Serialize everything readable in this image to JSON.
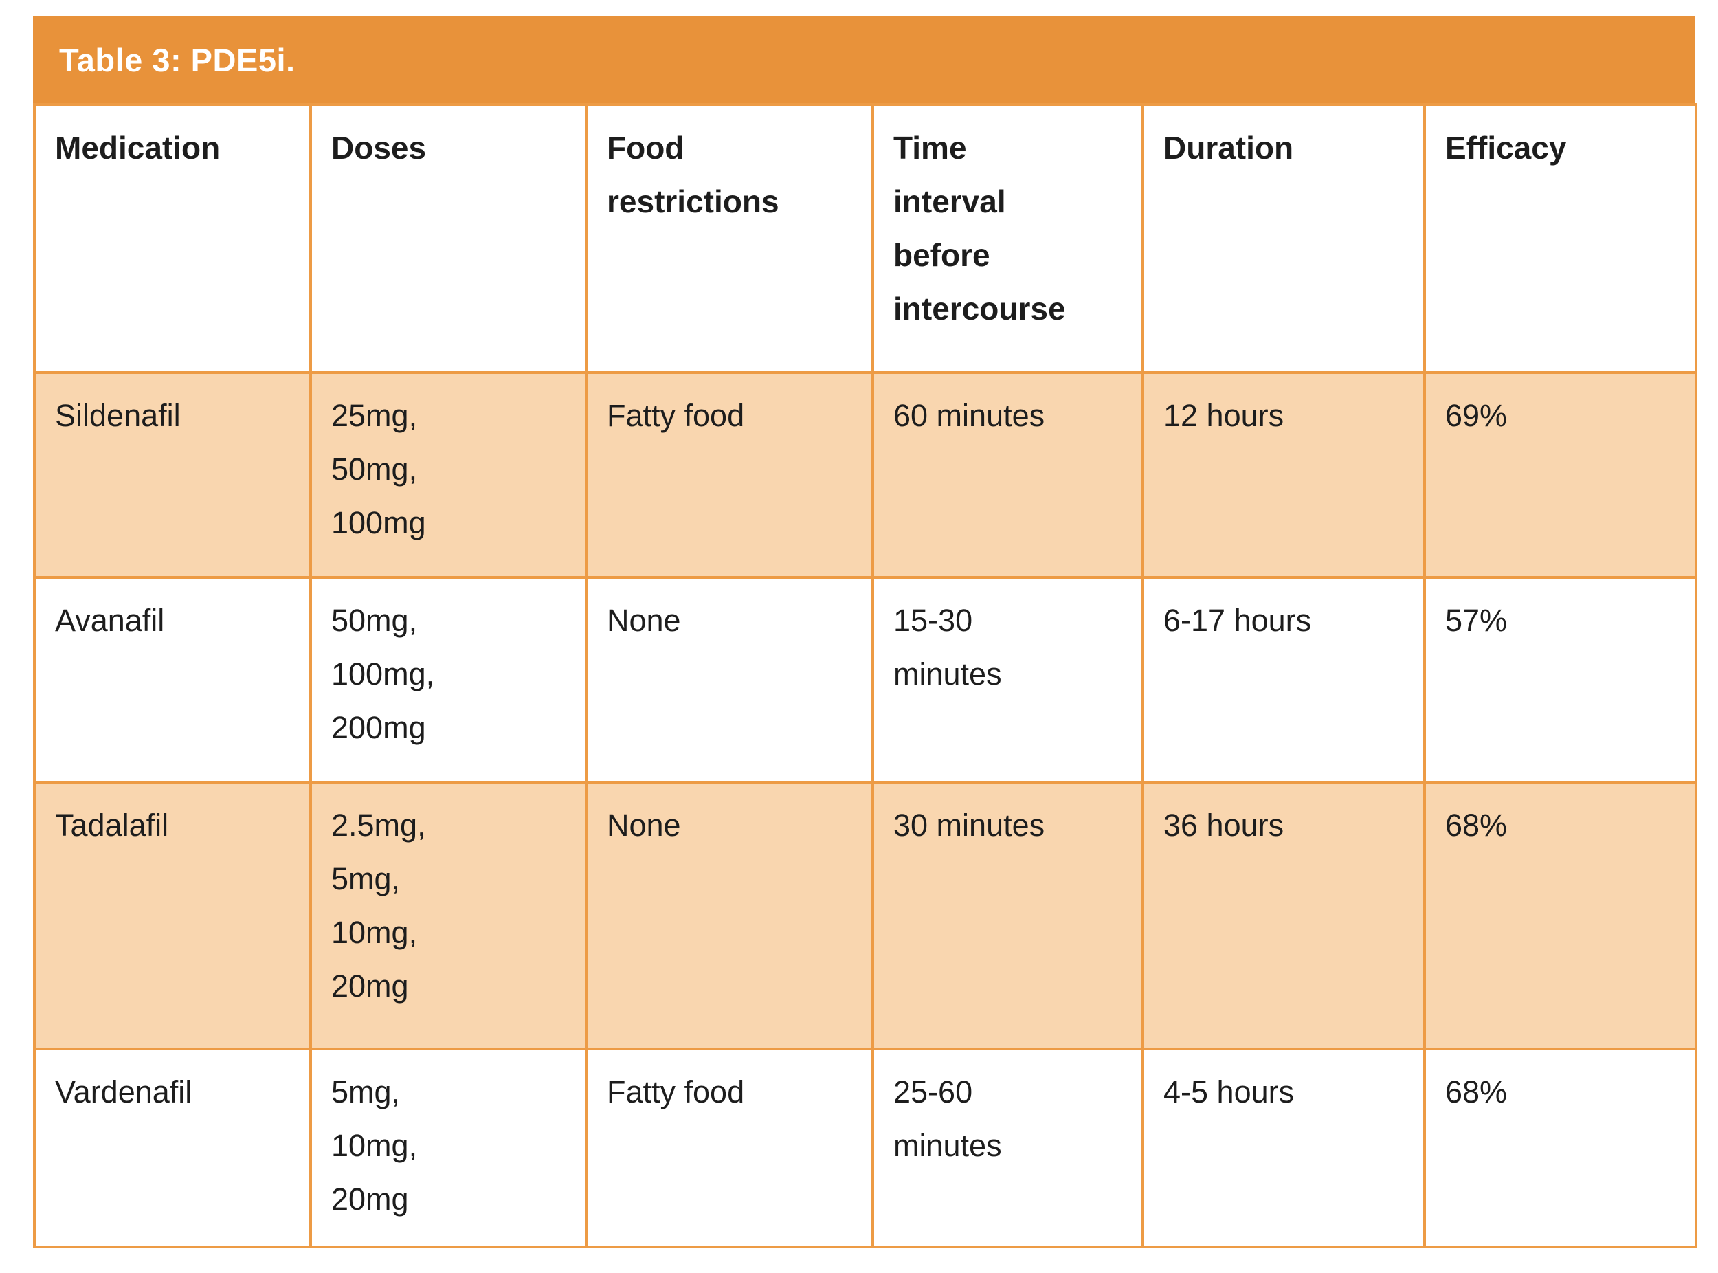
{
  "title": "Table 3: PDE5i.",
  "colors": {
    "accent_orange": "#e8923a",
    "border_orange": "#ed9b45",
    "shaded_row": "#f9d6af",
    "text": "#1d1d1d",
    "title_text": "#ffffff"
  },
  "table": {
    "headers": [
      "Medication",
      "Doses",
      "Food\nrestrictions",
      "Time\ninterval\nbefore\nintercourse",
      "Duration",
      "Efficacy"
    ],
    "rows": [
      {
        "medication": "Sildenafil",
        "doses": "25mg,\n50mg,\n100mg",
        "food_restrictions": "Fatty food",
        "time_interval": "60 minutes",
        "duration": "12 hours",
        "efficacy": "69%"
      },
      {
        "medication": "Avanafil",
        "doses": "50mg,\n100mg,\n200mg",
        "food_restrictions": "None",
        "time_interval": "15-30\nminutes",
        "duration": "6-17 hours",
        "efficacy": "57%"
      },
      {
        "medication": "Tadalafil",
        "doses": "2.5mg,\n5mg,\n10mg,\n20mg",
        "food_restrictions": "None",
        "time_interval": "30 minutes",
        "duration": "36 hours",
        "efficacy": "68%"
      },
      {
        "medication": "Vardenafil",
        "doses": "5mg,\n10mg,\n20mg",
        "food_restrictions": "Fatty food",
        "time_interval": "25-60\nminutes",
        "duration": "4-5 hours",
        "efficacy": "68%"
      }
    ]
  }
}
